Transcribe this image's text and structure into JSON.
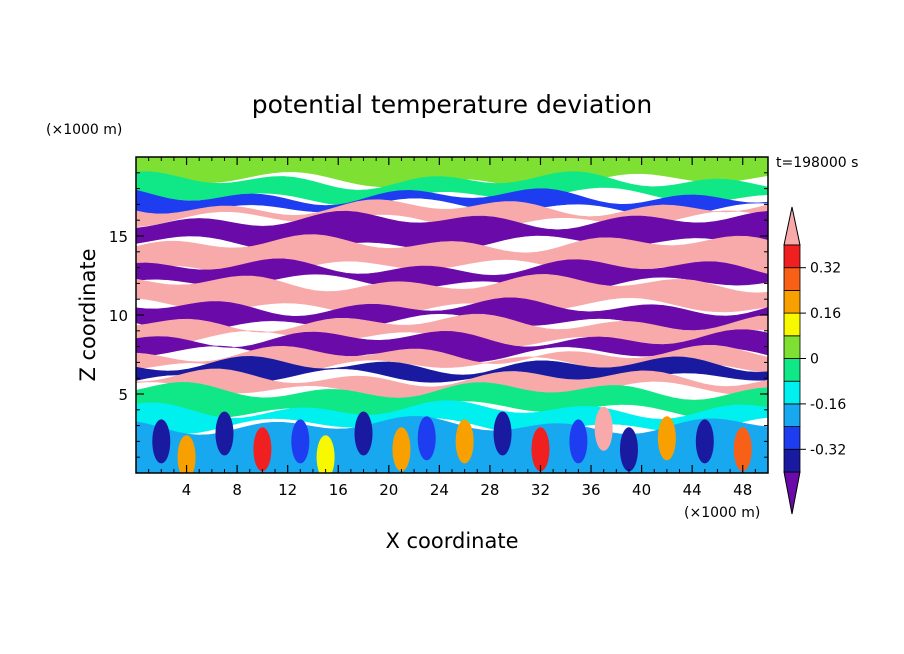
{
  "chart_data": {
    "type": "heatmap",
    "title": "potential temperature deviation",
    "xlabel": "X coordinate",
    "ylabel": "Z coordinate",
    "x_unit": "(×1000 m)",
    "y_unit": "(×1000 m)",
    "time_label": "t=198000 s",
    "xlim": [
      0,
      50
    ],
    "ylim": [
      0,
      20
    ],
    "x_ticks": [
      "4",
      "8",
      "12",
      "16",
      "20",
      "24",
      "28",
      "32",
      "36",
      "40",
      "44",
      "48"
    ],
    "x_tick_values": [
      4,
      8,
      12,
      16,
      20,
      24,
      28,
      32,
      36,
      40,
      44,
      48
    ],
    "y_ticks": [
      "5",
      "10",
      "15"
    ],
    "y_tick_values": [
      5,
      10,
      15
    ],
    "colorbar": {
      "labels": [
        "0.32",
        "0.16",
        "0",
        "-0.16",
        "-0.32"
      ],
      "label_values": [
        0.32,
        0.16,
        0,
        -0.16,
        -0.32
      ],
      "levels": [
        -0.4,
        -0.32,
        -0.24,
        -0.16,
        -0.08,
        0,
        0.08,
        0.16,
        0.24,
        0.32,
        0.4
      ],
      "colors": [
        "#6a0aa8",
        "#1a1aa0",
        "#1e3cf0",
        "#18a8f0",
        "#00f0f0",
        "#10e888",
        "#7ee032",
        "#f8f800",
        "#f8a000",
        "#f86018",
        "#f02020",
        "#f8aaaa"
      ]
    },
    "layers": [
      {
        "z": [
          18.5,
          20
        ],
        "value": 0.04
      },
      {
        "z": [
          17.5,
          18.5
        ],
        "value": -0.05
      },
      {
        "z": [
          16.8,
          17.5
        ],
        "value": -0.3
      },
      {
        "z": [
          16,
          16.8
        ],
        "value": 0.44
      },
      {
        "z": [
          14.5,
          16
        ],
        "value": -0.44
      },
      {
        "z": [
          13,
          14.5
        ],
        "value": 0.44
      },
      {
        "z": [
          12,
          13
        ],
        "value": -0.44
      },
      {
        "z": [
          10.5,
          12
        ],
        "value": 0.44
      },
      {
        "z": [
          9.5,
          10.5
        ],
        "value": -0.44
      },
      {
        "z": [
          8.5,
          9.5
        ],
        "value": 0.44
      },
      {
        "z": [
          7.5,
          8.5
        ],
        "value": -0.44
      },
      {
        "z": [
          6.8,
          7.5
        ],
        "value": 0.44
      },
      {
        "z": [
          6,
          6.8
        ],
        "value": -0.4
      },
      {
        "z": [
          5.2,
          6
        ],
        "value": 0.44
      },
      {
        "z": [
          4,
          5.2
        ],
        "value": -0.02
      },
      {
        "z": [
          3,
          4
        ],
        "value": -0.12
      },
      {
        "z": [
          0,
          3
        ],
        "value": -0.2
      }
    ],
    "lower_anomalies": [
      {
        "x": 2,
        "z": 2,
        "value": -0.35
      },
      {
        "x": 4,
        "z": 1,
        "value": 0.2
      },
      {
        "x": 7,
        "z": 2.5,
        "value": -0.4
      },
      {
        "x": 10,
        "z": 1.5,
        "value": 0.36
      },
      {
        "x": 13,
        "z": 2,
        "value": -0.3
      },
      {
        "x": 15,
        "z": 1,
        "value": 0.1
      },
      {
        "x": 18,
        "z": 2.5,
        "value": -0.36
      },
      {
        "x": 21,
        "z": 1.5,
        "value": 0.22
      },
      {
        "x": 23,
        "z": 2.2,
        "value": -0.32
      },
      {
        "x": 26,
        "z": 2,
        "value": 0.18
      },
      {
        "x": 29,
        "z": 2.5,
        "value": -0.38
      },
      {
        "x": 32,
        "z": 1.5,
        "value": 0.36
      },
      {
        "x": 35,
        "z": 2,
        "value": -0.28
      },
      {
        "x": 37,
        "z": 2.8,
        "value": 0.44
      },
      {
        "x": 39,
        "z": 1.5,
        "value": -0.4
      },
      {
        "x": 42,
        "z": 2.2,
        "value": 0.2
      },
      {
        "x": 45,
        "z": 2,
        "value": -0.36
      },
      {
        "x": 48,
        "z": 1.5,
        "value": 0.3
      }
    ]
  }
}
